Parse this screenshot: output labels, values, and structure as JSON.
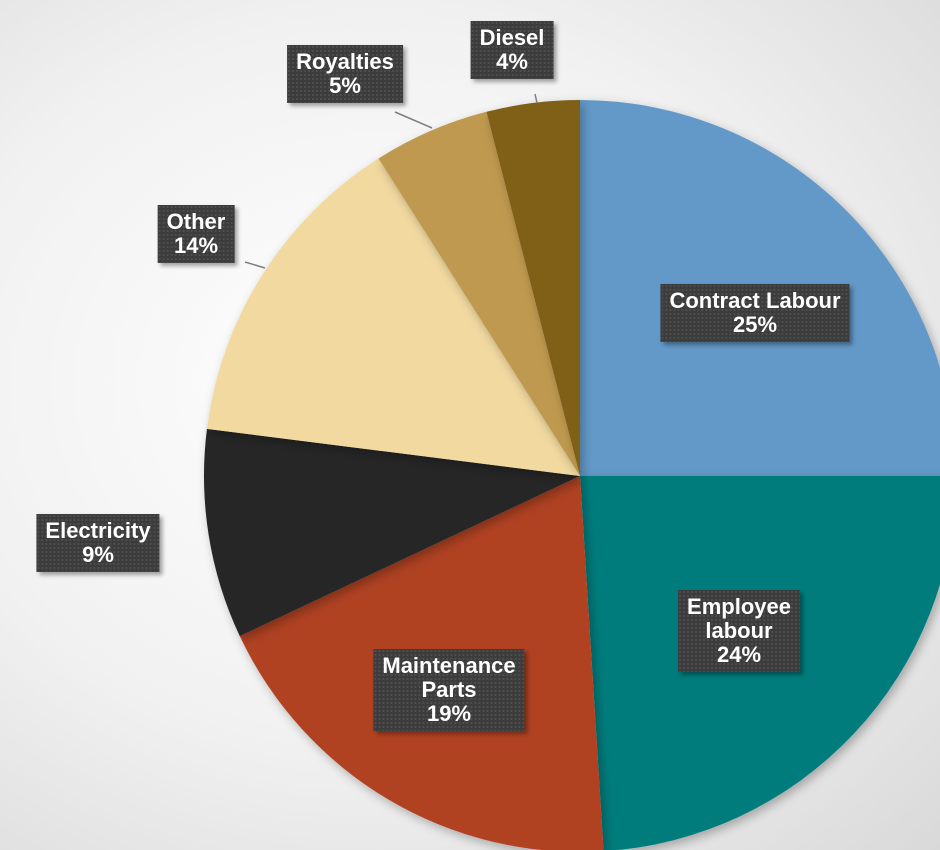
{
  "chart_data": {
    "type": "pie",
    "title": "",
    "legend": "none",
    "data_labels": "category-and-percent",
    "slices": [
      {
        "category": "Contract Labour",
        "label_lines": [
          "Contract Labour"
        ],
        "value": 25,
        "display": "25%",
        "color": "#6399c8"
      },
      {
        "category": "Employee labour",
        "label_lines": [
          "Employee",
          "labour"
        ],
        "value": 24,
        "display": "24%",
        "color": "#007b7b"
      },
      {
        "category": "Maintenance Parts",
        "label_lines": [
          "Maintenance",
          "Parts"
        ],
        "value": 19,
        "display": "19%",
        "color": "#b04224"
      },
      {
        "category": "Electricity",
        "label_lines": [
          "Electricity"
        ],
        "value": 9,
        "display": "9%",
        "color": "#262626"
      },
      {
        "category": "Other",
        "label_lines": [
          "Other"
        ],
        "value": 14,
        "display": "14%",
        "color": "#f1d9a0"
      },
      {
        "category": "Royalties",
        "label_lines": [
          "Royalties"
        ],
        "value": 5,
        "display": "5%",
        "color": "#bf994f"
      },
      {
        "category": "Diesel",
        "label_lines": [
          "Diesel"
        ],
        "value": 4,
        "display": "4%",
        "color": "#7f6014"
      }
    ]
  }
}
